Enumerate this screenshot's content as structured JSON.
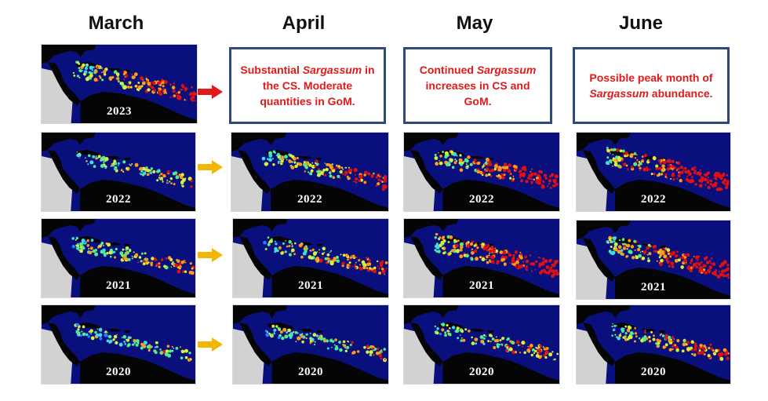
{
  "months": [
    "March",
    "April",
    "May",
    "June"
  ],
  "notes": {
    "april": {
      "before": "Substantial ",
      "em": "Sargassum",
      "after": " in the CS. Moderate quantities in GoM."
    },
    "may": {
      "before": "Continued ",
      "em": "Sargassum",
      "after": " increases in CS and GoM."
    },
    "june": {
      "before": "Possible peak month of ",
      "em": "Sargassum",
      "after": " abundance."
    }
  },
  "years": [
    "2023",
    "2022",
    "2021",
    "2020"
  ],
  "colors": {
    "ocean": "#0a0f7e",
    "land": "#050505",
    "no_data": "#d2d2d2",
    "note_text": "#e01919",
    "note_border": "#2f4a7a",
    "arrow_2023": "#e21a1a",
    "arrow_other": "#f2b705",
    "density_scale": [
      "#2a7bff",
      "#3fd9e8",
      "#4cf08a",
      "#d8f03c",
      "#ff9a1a",
      "#e01010"
    ]
  },
  "density": {
    "2023": {
      "march": 0.75
    },
    "2022": {
      "march": 0.35,
      "april": 0.6,
      "may": 0.8,
      "june": 0.95
    },
    "2021": {
      "march": 0.5,
      "april": 0.55,
      "may": 0.9,
      "june": 0.85
    },
    "2020": {
      "march": 0.3,
      "april": 0.35,
      "may": 0.45,
      "june": 0.6
    }
  }
}
